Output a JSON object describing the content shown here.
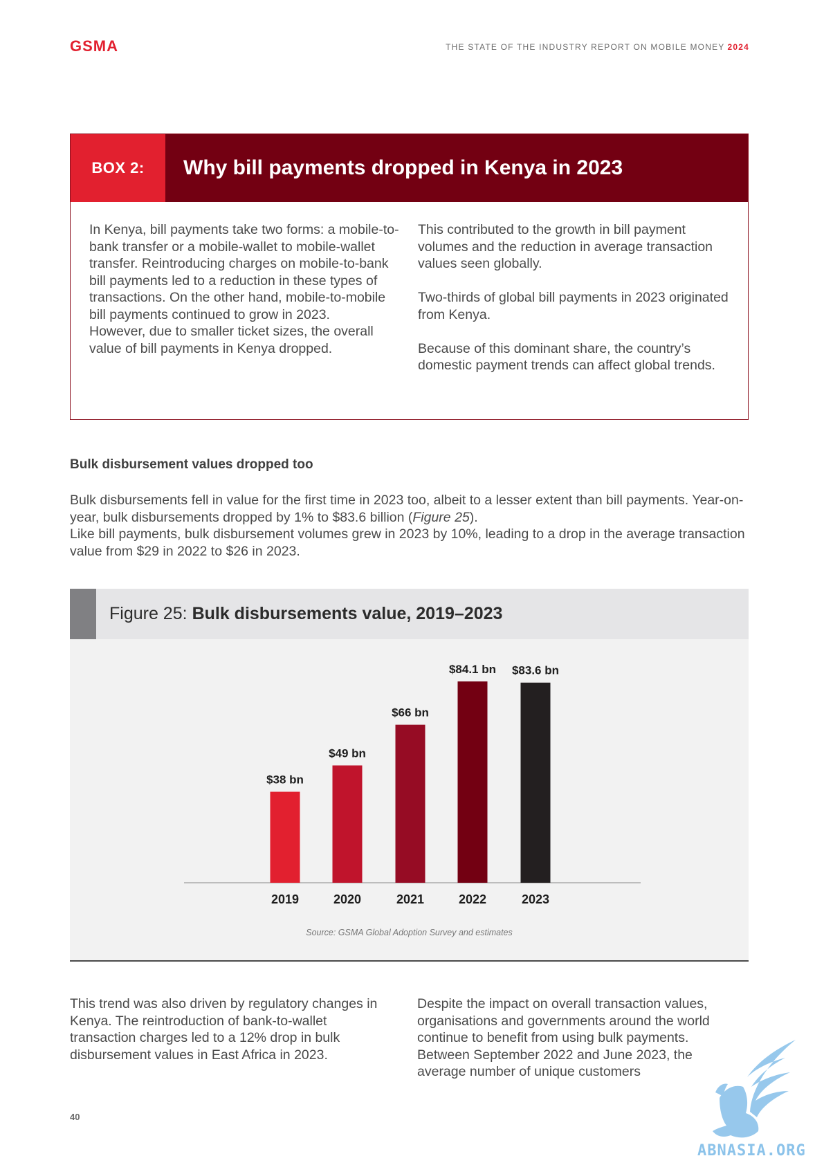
{
  "header": {
    "logo": "GSMA",
    "running_head": "THE STATE OF THE INDUSTRY REPORT ON MOBILE MONEY",
    "running_head_year": "2024"
  },
  "box": {
    "tag": "BOX 2:",
    "title": "Why bill payments dropped in Kenya in 2023",
    "left_paragraphs": [
      "In Kenya, bill payments take two forms: a mobile-to-bank transfer or a mobile-wallet to mobile-wallet transfer. Reintroducing charges on mobile-to-bank bill payments led to a reduction in these types of transactions. On the other hand, mobile-to-mobile bill payments continued to grow in 2023.",
      "However, due to smaller ticket sizes, the overall value of bill payments in Kenya dropped."
    ],
    "right_paragraphs": [
      "This contributed to the growth in bill payment volumes and the reduction in average transaction values seen globally.",
      "Two-thirds of global bill payments in 2023 originated from Kenya.",
      "Because of this dominant share, the country’s domestic payment trends can affect global trends."
    ]
  },
  "section": {
    "heading": "Bulk disbursement values dropped too",
    "p1_before": "Bulk disbursements fell in value for the first time in 2023 too, albeit to a lesser extent than bill payments. Year-on-year, bulk disbursements dropped by 1% to $83.6 billion (",
    "p1_ref": "Figure 25",
    "p1_after": ").",
    "p2": "Like bill payments, bulk disbursement volumes grew in 2023 by 10%, leading to a drop in the average transaction value from $29 in 2022 to $26 in 2023."
  },
  "figure": {
    "label": "Figure 25:",
    "name": "Bulk disbursements value, 2019–2023",
    "source": "Source: GSMA Global Adoption Survey and estimates"
  },
  "chart_data": {
    "type": "bar",
    "title": "Bulk disbursements value, 2019–2023",
    "categories": [
      "2019",
      "2020",
      "2021",
      "2022",
      "2023"
    ],
    "values": [
      38,
      49,
      66,
      84.1,
      83.6
    ],
    "data_labels": [
      "$38 bn",
      "$49 bn",
      "$66 bn",
      "$84.1 bn",
      "$83.6 bn"
    ],
    "colors": [
      "#e2202f",
      "#c0142c",
      "#960c24",
      "#730012",
      "#231f20"
    ],
    "xlabel": "",
    "ylabel": "",
    "ylim": [
      0,
      84.1
    ],
    "grid": false,
    "legend": "none"
  },
  "bottom": {
    "left": "This trend was also driven by regulatory changes in Kenya. The reintroduction of bank-to-wallet transaction charges led to a 12% drop in bulk disbursement values in East Africa in 2023.",
    "right": "Despite the impact on overall transaction values, organisations and governments around the world continue to benefit from using bulk payments. Between September 2022 and June 2023, the average number of unique customers"
  },
  "page_number": "40",
  "watermark": {
    "text": "ABNASIA.ORG",
    "icon": "griffin-logo-icon"
  }
}
